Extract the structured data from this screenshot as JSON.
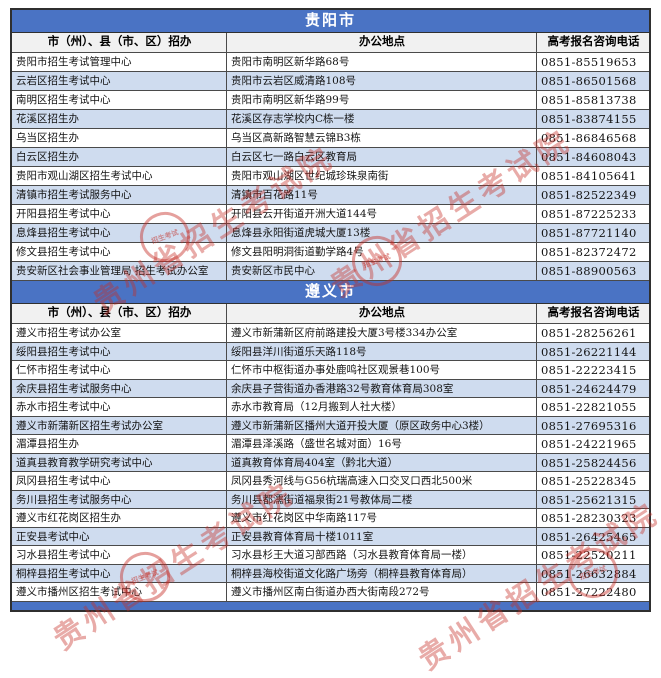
{
  "table": {
    "sections": [
      {
        "title": "贵阳市",
        "columns": [
          "市（州）、县（市、区）招办",
          "办公地点",
          "高考报名咨询电话"
        ],
        "rows": [
          {
            "office": "贵阳市招生考试管理中心",
            "address": "贵阳市南明区新华路68号",
            "phone": "0851-85519653"
          },
          {
            "office": "云岩区招生考试中心",
            "address": "贵阳市云岩区威清路108号",
            "phone": "0851-86501568"
          },
          {
            "office": "南明区招生考试中心",
            "address": "贵阳市南明区新华路99号",
            "phone": "0851-85813738"
          },
          {
            "office": "花溪区招生办",
            "address": "花溪区存志学校内C栋一楼",
            "phone": "0851-83874155"
          },
          {
            "office": "乌当区招生办",
            "address": "乌当区高新路智慧云锦B3栋",
            "phone": "0851-86846568"
          },
          {
            "office": "白云区招生办",
            "address": "白云区七一路白云区教育局",
            "phone": "0851-84608043"
          },
          {
            "office": "贵阳市观山湖区招生考试中心",
            "address": "贵阳市观山湖区世纪城珍珠泉南街",
            "phone": "0851-84105641"
          },
          {
            "office": "清镇市招生考试服务中心",
            "address": "清镇市百花路11号",
            "phone": "0851-82522349"
          },
          {
            "office": "开阳县招生考试中心",
            "address": "开阳县云开街道开洲大道144号",
            "phone": "0851-87225233"
          },
          {
            "office": "息烽县招生考试中心",
            "address": "息烽县永阳街道虎城大厦13楼",
            "phone": "0851-87721140"
          },
          {
            "office": "修文县招生考试中心",
            "address": "修文县阳明洞街道勤学路4号",
            "phone": "0851-82372472"
          },
          {
            "office": "贵安新区社会事业管理局 招生考试办公室",
            "address": "贵安新区市民中心",
            "phone": "0851-88900563"
          }
        ]
      },
      {
        "title": "遵义市",
        "columns": [
          "市（州）、县（市、区）招办",
          "办公地点",
          "高考报名咨询电话"
        ],
        "rows": [
          {
            "office": "遵义市招生考试办公室",
            "address": "遵义市新蒲新区府前路建投大厦3号楼334办公室",
            "phone": "0851-28256261"
          },
          {
            "office": "绥阳县招生考试中心",
            "address": "绥阳县洋川街道乐天路118号",
            "phone": "0851-26221144"
          },
          {
            "office": "仁怀市招生考试中心",
            "address": "仁怀市中枢街道办事处鹿鸣社区观景巷100号",
            "phone": "0851-22223415"
          },
          {
            "office": "余庆县招生考试服务中心",
            "address": "余庆县子营街道办香港路32号教育体育局308室",
            "phone": "0851-24624479"
          },
          {
            "office": "赤水市招生考试中心",
            "address": "赤水市教育局（12月搬到人社大楼）",
            "phone": "0851-22821055"
          },
          {
            "office": "遵义市新蒲新区招生考试办公室",
            "address": "遵义市新蒲新区播州大道开投大厦（原区政务中心3楼）",
            "phone": "0851-27695316"
          },
          {
            "office": "湄潭县招生办",
            "address": "湄潭县泽溪路（盛世名城对面）16号",
            "phone": "0851-24221965"
          },
          {
            "office": "道真县教育教学研究考试中心",
            "address": "道真教育体育局404室（黔北大道）",
            "phone": "0851-25824456"
          },
          {
            "office": "凤冈县招生考试中心",
            "address": "凤冈县秀河线与G56杭瑞高速入口交叉口西北500米",
            "phone": "0851-25228345"
          },
          {
            "office": "务川县招生考试服务中心",
            "address": "务川县都濡街道福泉街21号教体局二楼",
            "phone": "0851-25621315"
          },
          {
            "office": "遵义市红花岗区招生办",
            "address": "遵义市红花岗区中华南路117号",
            "phone": "0851-28230323"
          },
          {
            "office": "正安县考试中心",
            "address": "正安县教育体育局十楼1011室",
            "phone": "0851-26425465"
          },
          {
            "office": "习水县招生考试中心",
            "address": "习水县杉王大道习部西路（习水县教育体育局一楼）",
            "phone": "0851-22520211"
          },
          {
            "office": "桐梓县招生考试中心",
            "address": "桐梓县海校街道文化路广场旁（桐梓县教育体育局）",
            "phone": "0851-26632884"
          },
          {
            "office": "遵义市播州区招生考试中心",
            "address": "遵义市播州区南白街道办西大街南段272号",
            "phone": "0851-27222480"
          }
        ]
      }
    ]
  },
  "watermark": {
    "text": "贵州省招生考试院",
    "seal_text": "招生考试"
  },
  "colors": {
    "section_header_blue": "#4a73c4",
    "alt_row_blue": "#cfdcef",
    "column_header_gray": "#f1f1f1",
    "watermark_red": "#c62d26",
    "border_dark": "#2f2f2f"
  }
}
